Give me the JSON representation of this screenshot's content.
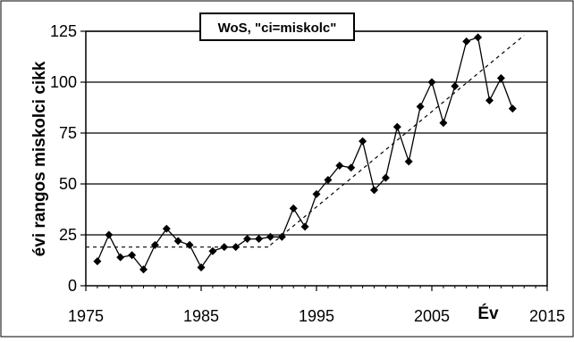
{
  "chart_data": {
    "type": "line",
    "title": "WoS, \"ci=miskolc\"",
    "xlabel": "Év",
    "ylabel": "évi rangos miskolci cikk",
    "xlim": [
      1975,
      2015
    ],
    "ylim": [
      0,
      125
    ],
    "x_ticks": [
      "1975",
      "1985",
      "1995",
      "2005",
      "2015"
    ],
    "y_ticks": [
      "0",
      "25",
      "50",
      "75",
      "100",
      "125"
    ],
    "grid": "horizontal",
    "colors": {
      "line": "#000000",
      "grid": "#000000",
      "frame": "#000000",
      "background": "#ffffff"
    },
    "series": [
      {
        "x": [
          1976,
          1977,
          1978,
          1979,
          1980,
          1981,
          1982,
          1983,
          1984,
          1985,
          1986,
          1987,
          1988,
          1989,
          1990,
          1991,
          1992,
          1993,
          1994,
          1995,
          1996,
          1997,
          1998,
          1999,
          2000,
          2001,
          2002,
          2003,
          2004,
          2005,
          2006,
          2007,
          2008,
          2009,
          2010,
          2011,
          2012
        ],
        "y": [
          12,
          25,
          14,
          15,
          8,
          20,
          28,
          22,
          20,
          9,
          17,
          19,
          19,
          23,
          23,
          24,
          24,
          38,
          29,
          45,
          52,
          59,
          58,
          71,
          47,
          53,
          78,
          61,
          88,
          100,
          80,
          98,
          120,
          122,
          91,
          102,
          87
        ]
      }
    ],
    "trend_segments": [
      {
        "x": [
          1975,
          1991
        ],
        "y": [
          19,
          19
        ]
      },
      {
        "x": [
          1991,
          2013
        ],
        "y": [
          20,
          123
        ]
      }
    ]
  }
}
